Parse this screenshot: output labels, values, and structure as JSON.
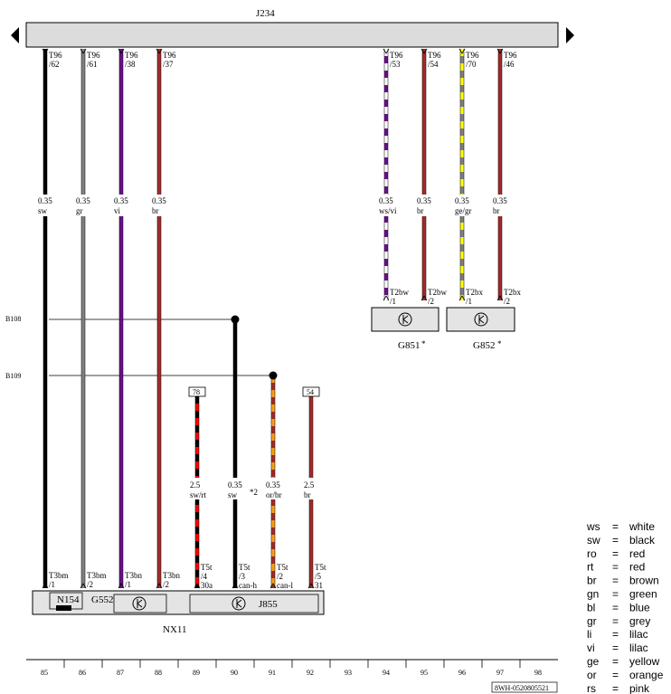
{
  "control_unit": {
    "label": "J234"
  },
  "bus_lines": [
    {
      "label": "B108"
    },
    {
      "label": "B109"
    }
  ],
  "wires": [
    {
      "top_connector": "T96",
      "top_pin": "/62",
      "gauge": "0.35",
      "color": "sw",
      "bottom_connector": "T3bm",
      "bottom_pin": "/1",
      "colors": [
        "#000000"
      ]
    },
    {
      "top_connector": "T96",
      "top_pin": "/61",
      "gauge": "0.35",
      "color": "gr",
      "bottom_connector": "T3bm",
      "bottom_pin": "/2",
      "colors": [
        "#808080"
      ]
    },
    {
      "top_connector": "T96",
      "top_pin": "/38",
      "gauge": "0.35",
      "color": "vi",
      "bottom_connector": "T3bn",
      "bottom_pin": "/1",
      "colors": [
        "#6a0f8e"
      ]
    },
    {
      "top_connector": "T96",
      "top_pin": "/37",
      "gauge": "0.35",
      "color": "br",
      "bottom_connector": "T3bn",
      "bottom_pin": "/2",
      "colors": [
        "#a52a2a"
      ]
    },
    {
      "top_connector": "T96",
      "top_pin": "/53",
      "gauge": "0.35",
      "color": "ws/vi",
      "bottom_connector": "T2bw",
      "bottom_pin": "/1",
      "colors": [
        "#ffffff",
        "#6a0f8e"
      ]
    },
    {
      "top_connector": "T96",
      "top_pin": "/54",
      "gauge": "0.35",
      "color": "br",
      "bottom_connector": "T2bw",
      "bottom_pin": "/2",
      "colors": [
        "#a52a2a"
      ]
    },
    {
      "top_connector": "T96",
      "top_pin": "/70",
      "gauge": "0.35",
      "color": "ge/gr",
      "bottom_connector": "T2bx",
      "bottom_pin": "/1",
      "colors": [
        "#ffff00",
        "#808080"
      ]
    },
    {
      "top_connector": "T96",
      "top_pin": "/46",
      "gauge": "0.35",
      "color": "br",
      "bottom_connector": "T2bx",
      "bottom_pin": "/2",
      "colors": [
        "#a52a2a"
      ]
    }
  ],
  "lower_wires": [
    {
      "ref_box": "78",
      "gauge": "2.5",
      "color": "sw/rt",
      "connector": "T5t",
      "pin": "/4",
      "signal": "30a",
      "colors": [
        "#000000",
        "#ff0000"
      ]
    },
    {
      "ref_box": "",
      "gauge": "0.35",
      "color": "sw",
      "connector": "T5t",
      "pin": "/3",
      "signal": "can-h",
      "colors": [
        "#000000"
      ]
    },
    {
      "ref_box": "",
      "gauge": "0.35",
      "color": "or/br",
      "connector": "T5t",
      "pin": "/2",
      "signal": "can-l",
      "colors": [
        "#f5a01a",
        "#a52a2a"
      ]
    },
    {
      "ref_box": "54",
      "gauge": "2.5",
      "color": "br",
      "connector": "T5t",
      "pin": "/5",
      "signal": "31",
      "colors": [
        "#a52a2a"
      ]
    }
  ],
  "note_marker": "*2",
  "sensors": [
    {
      "label": "G851",
      "mark": "*"
    },
    {
      "label": "G852",
      "mark": "*"
    }
  ],
  "components": {
    "n154": "N154",
    "g552": "G552",
    "j855": "J855",
    "nx11": "NX11"
  },
  "ruler": [
    "85",
    "86",
    "87",
    "88",
    "89",
    "90",
    "91",
    "92",
    "93",
    "94",
    "95",
    "96",
    "97",
    "98"
  ],
  "doc_id": "8WH-0520805521",
  "legend": [
    {
      "code": "ws",
      "eq": "=",
      "name": "white"
    },
    {
      "code": "sw",
      "eq": "=",
      "name": "black"
    },
    {
      "code": "ro",
      "eq": "=",
      "name": "red"
    },
    {
      "code": "rt",
      "eq": "=",
      "name": "red"
    },
    {
      "code": "br",
      "eq": "=",
      "name": "brown"
    },
    {
      "code": "gn",
      "eq": "=",
      "name": "green"
    },
    {
      "code": "bl",
      "eq": "=",
      "name": "blue"
    },
    {
      "code": "gr",
      "eq": "=",
      "name": "grey"
    },
    {
      "code": "li",
      "eq": "=",
      "name": "lilac"
    },
    {
      "code": "vi",
      "eq": "=",
      "name": "lilac"
    },
    {
      "code": "ge",
      "eq": "=",
      "name": "yellow"
    },
    {
      "code": "or",
      "eq": "=",
      "name": "orange"
    },
    {
      "code": "rs",
      "eq": "=",
      "name": "pink"
    }
  ]
}
